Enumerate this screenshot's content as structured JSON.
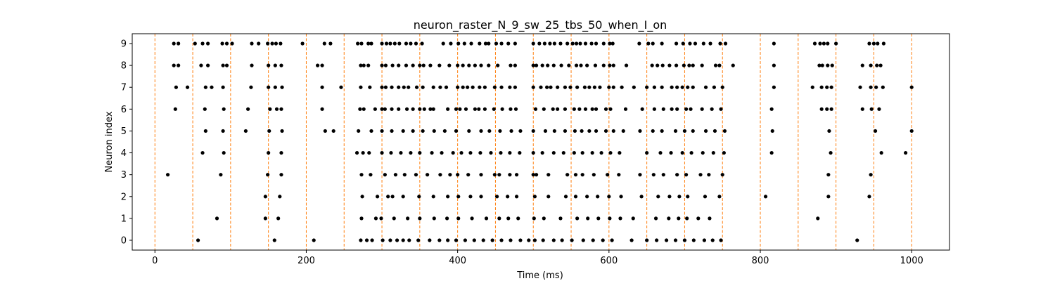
{
  "chart_data": {
    "type": "scatter",
    "title": "neuron_raster_N_9_sw_25_tbs_50_when_I_on",
    "xlabel": "Time (ms)",
    "ylabel": "Neuron index",
    "xlim": [
      -30,
      1050
    ],
    "ylim": [
      -0.45,
      9.45
    ],
    "xticks": [
      0,
      200,
      400,
      600,
      800,
      1000
    ],
    "xtick_labels": [
      "0",
      "200",
      "400",
      "600",
      "800",
      "1000"
    ],
    "yticks": [
      0,
      1,
      2,
      3,
      4,
      5,
      6,
      7,
      8,
      9
    ],
    "ytick_labels": [
      "0",
      "1",
      "2",
      "3",
      "4",
      "5",
      "6",
      "7",
      "8",
      "9"
    ],
    "grid": false,
    "marker_color": "#000000",
    "vline_color": "#ff7f0e",
    "vlines": [
      0,
      50,
      100,
      150,
      200,
      250,
      300,
      350,
      400,
      450,
      500,
      550,
      600,
      650,
      700,
      750,
      800,
      850,
      900,
      950,
      1000
    ],
    "spikes": [
      {
        "neuron": 0,
        "times": [
          57,
          158,
          210,
          272,
          280,
          287,
          301,
          311,
          320,
          328,
          336,
          348,
          363,
          376,
          387,
          398,
          410,
          422,
          434,
          446,
          458,
          470,
          483,
          494,
          502,
          513,
          527,
          538,
          551,
          566,
          579,
          592,
          604,
          630,
          650,
          663,
          676,
          688,
          700,
          712,
          726,
          737,
          748,
          928
        ]
      },
      {
        "neuron": 1,
        "times": [
          82,
          146,
          163,
          273,
          292,
          299,
          316,
          334,
          350,
          369,
          386,
          401,
          419,
          438,
          455,
          467,
          480,
          501,
          514,
          536,
          558,
          572,
          586,
          601,
          615,
          632,
          662,
          679,
          692,
          703,
          718,
          733,
          876
        ]
      },
      {
        "neuron": 2,
        "times": [
          146,
          165,
          274,
          294,
          308,
          314,
          328,
          349,
          368,
          387,
          401,
          417,
          431,
          452,
          466,
          478,
          502,
          520,
          543,
          556,
          571,
          585,
          600,
          616,
          643,
          665,
          680,
          693,
          704,
          727,
          746,
          807,
          890,
          944
        ]
      },
      {
        "neuron": 3,
        "times": [
          17,
          87,
          149,
          167,
          273,
          285,
          304,
          318,
          330,
          345,
          360,
          377,
          390,
          400,
          414,
          431,
          449,
          455,
          469,
          478,
          500,
          504,
          520,
          545,
          556,
          565,
          580,
          598,
          613,
          641,
          659,
          672,
          690,
          702,
          721,
          732,
          750,
          890,
          946
        ]
      },
      {
        "neuron": 4,
        "times": [
          63,
          91,
          150,
          167,
          267,
          275,
          283,
          300,
          312,
          325,
          338,
          350,
          366,
          379,
          394,
          405,
          417,
          430,
          444,
          457,
          469,
          482,
          500,
          512,
          527,
          540,
          554,
          565,
          578,
          590,
          602,
          614,
          650,
          668,
          682,
          697,
          709,
          724,
          738,
          752,
          815,
          893,
          960,
          992
        ]
      },
      {
        "neuron": 5,
        "times": [
          67,
          90,
          120,
          151,
          168,
          225,
          236,
          269,
          286,
          300,
          313,
          328,
          341,
          354,
          369,
          383,
          398,
          415,
          431,
          442,
          456,
          471,
          483,
          500,
          516,
          528,
          542,
          555,
          564,
          574,
          583,
          596,
          606,
          619,
          641,
          658,
          670,
          688,
          700,
          711,
          728,
          740,
          753,
          816,
          891,
          952,
          1000
        ]
      },
      {
        "neuron": 6,
        "times": [
          27,
          66,
          91,
          123,
          152,
          161,
          167,
          221,
          271,
          276,
          291,
          300,
          304,
          313,
          322,
          333,
          341,
          350,
          356,
          364,
          368,
          387,
          398,
          403,
          411,
          423,
          428,
          436,
          448,
          459,
          470,
          477,
          503,
          514,
          526,
          532,
          542,
          554,
          561,
          569,
          578,
          583,
          596,
          602,
          622,
          644,
          660,
          672,
          683,
          690,
          702,
          708,
          723,
          736,
          748,
          815,
          881,
          888,
          894,
          935,
          947,
          957
        ]
      },
      {
        "neuron": 7,
        "times": [
          28,
          43,
          67,
          75,
          90,
          127,
          150,
          159,
          168,
          221,
          246,
          272,
          284,
          300,
          305,
          313,
          322,
          329,
          335,
          346,
          354,
          368,
          377,
          385,
          400,
          407,
          413,
          420,
          429,
          436,
          449,
          458,
          469,
          476,
          500,
          510,
          518,
          523,
          532,
          542,
          549,
          558,
          568,
          574,
          581,
          588,
          600,
          606,
          617,
          633,
          650,
          660,
          670,
          683,
          690,
          697,
          704,
          711,
          728,
          739,
          750,
          818,
          869,
          881,
          888,
          894,
          932,
          946,
          953,
          962,
          1000
        ]
      },
      {
        "neuron": 8,
        "times": [
          25,
          31,
          61,
          70,
          90,
          95,
          128,
          150,
          159,
          167,
          215,
          221,
          272,
          276,
          282,
          300,
          305,
          314,
          322,
          332,
          341,
          350,
          355,
          364,
          376,
          389,
          400,
          407,
          415,
          423,
          431,
          441,
          453,
          470,
          476,
          500,
          504,
          512,
          519,
          527,
          537,
          547,
          557,
          563,
          571,
          582,
          593,
          601,
          606,
          623,
          657,
          664,
          671,
          680,
          689,
          699,
          706,
          711,
          723,
          741,
          746,
          764,
          818,
          878,
          882,
          889,
          895,
          935,
          946,
          954,
          959
        ]
      },
      {
        "neuron": 9,
        "times": [
          25,
          31,
          53,
          63,
          70,
          89,
          95,
          102,
          128,
          137,
          149,
          155,
          160,
          166,
          195,
          224,
          232,
          268,
          273,
          282,
          286,
          300,
          306,
          311,
          317,
          323,
          332,
          338,
          345,
          353,
          381,
          391,
          401,
          409,
          418,
          429,
          437,
          441,
          451,
          458,
          467,
          476,
          500,
          508,
          515,
          522,
          528,
          536,
          545,
          552,
          557,
          562,
          569,
          577,
          583,
          593,
          601,
          605,
          640,
          652,
          658,
          670,
          689,
          698,
          707,
          714,
          725,
          734,
          747,
          754,
          818,
          872,
          879,
          884,
          889,
          900,
          944,
          950,
          955,
          963
        ]
      }
    ]
  }
}
